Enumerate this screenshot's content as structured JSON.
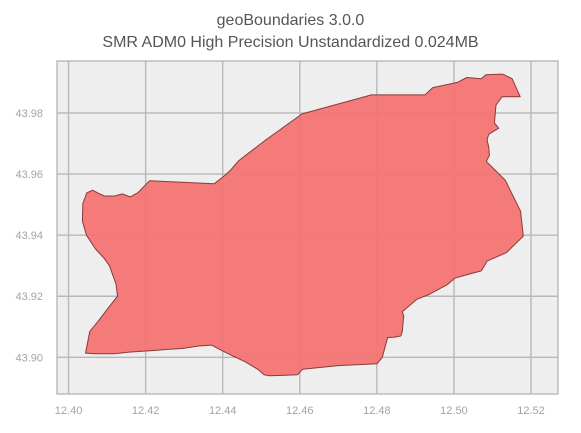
{
  "title": {
    "line1": "geoBoundaries 3.0.0",
    "line2": "SMR ADM0 High Precision Unstandardized 0.024MB"
  },
  "map": {
    "region_code": "SMR",
    "admin_level": "ADM0",
    "fill_color": "#f47373",
    "edge_color": "#8a3a3a",
    "background_color": "#eeeeee",
    "grid_color": "#b8b8b8",
    "grid": true,
    "xlim": [
      12.397,
      12.527
    ],
    "ylim": [
      43.888,
      43.997
    ],
    "x_ticks": [
      {
        "value": 12.4,
        "label": "12.40"
      },
      {
        "value": 12.42,
        "label": "12.42"
      },
      {
        "value": 12.44,
        "label": "12.44"
      },
      {
        "value": 12.46,
        "label": "12.46"
      },
      {
        "value": 12.48,
        "label": "12.48"
      },
      {
        "value": 12.5,
        "label": "12.50"
      },
      {
        "value": 12.52,
        "label": "12.52"
      }
    ],
    "y_ticks": [
      {
        "value": 43.9,
        "label": "43.90"
      },
      {
        "value": 43.92,
        "label": "43.92"
      },
      {
        "value": 43.94,
        "label": "43.94"
      },
      {
        "value": 43.96,
        "label": "43.96"
      },
      {
        "value": 43.98,
        "label": "43.98"
      }
    ],
    "outline": [
      [
        12.4047,
        43.9538
      ],
      [
        12.4062,
        43.9547
      ],
      [
        12.4078,
        43.9537
      ],
      [
        12.4093,
        43.9528
      ],
      [
        12.412,
        43.9528
      ],
      [
        12.4139,
        43.9535
      ],
      [
        12.416,
        43.9525
      ],
      [
        12.4181,
        43.954
      ],
      [
        12.421,
        43.9578
      ],
      [
        12.4378,
        43.9568
      ],
      [
        12.4407,
        43.9597
      ],
      [
        12.4422,
        43.9615
      ],
      [
        12.4441,
        43.9643
      ],
      [
        12.451,
        43.971
      ],
      [
        12.4606,
        43.9797
      ],
      [
        12.4786,
        43.9859
      ],
      [
        12.4925,
        43.9859
      ],
      [
        12.4945,
        43.9883
      ],
      [
        12.5009,
        43.99
      ],
      [
        12.5033,
        43.9916
      ],
      [
        12.5071,
        43.9912
      ],
      [
        12.5083,
        43.9925
      ],
      [
        12.5126,
        43.9927
      ],
      [
        12.5151,
        43.9912
      ],
      [
        12.5172,
        43.9853
      ],
      [
        12.5125,
        43.9853
      ],
      [
        12.5109,
        43.9826
      ],
      [
        12.5105,
        43.9767
      ],
      [
        12.5116,
        43.975
      ],
      [
        12.509,
        43.973
      ],
      [
        12.5086,
        43.971
      ],
      [
        12.509,
        43.969
      ],
      [
        12.5092,
        43.9662
      ],
      [
        12.5084,
        43.9641
      ],
      [
        12.5133,
        43.958
      ],
      [
        12.5173,
        43.9478
      ],
      [
        12.518,
        43.9397
      ],
      [
        12.5136,
        43.9343
      ],
      [
        12.5086,
        43.9315
      ],
      [
        12.5071,
        43.9283
      ],
      [
        12.5044,
        43.9274
      ],
      [
        12.5002,
        43.9259
      ],
      [
        12.4983,
        43.9238
      ],
      [
        12.4937,
        43.9207
      ],
      [
        12.4904,
        43.919
      ],
      [
        12.4866,
        43.9149
      ],
      [
        12.487,
        43.9135
      ],
      [
        12.4868,
        43.9115
      ],
      [
        12.4866,
        43.9085
      ],
      [
        12.4862,
        43.907
      ],
      [
        12.4844,
        43.9066
      ],
      [
        12.4828,
        43.9065
      ],
      [
        12.4814,
        43.9
      ],
      [
        12.48,
        43.8979
      ],
      [
        12.47,
        43.8973
      ],
      [
        12.4607,
        43.8961
      ],
      [
        12.4594,
        43.8943
      ],
      [
        12.4556,
        43.8941
      ],
      [
        12.4522,
        43.894
      ],
      [
        12.4507,
        43.8943
      ],
      [
        12.4491,
        43.8961
      ],
      [
        12.4459,
        43.8985
      ],
      [
        12.4422,
        43.9007
      ],
      [
        12.4398,
        43.9022
      ],
      [
        12.4371,
        43.904
      ],
      [
        12.4338,
        43.9037
      ],
      [
        12.4295,
        43.9029
      ],
      [
        12.4257,
        43.9026
      ],
      [
        12.4216,
        43.9022
      ],
      [
        12.4157,
        43.9017
      ],
      [
        12.4119,
        43.9012
      ],
      [
        12.4071,
        43.9012
      ],
      [
        12.4044,
        43.9014
      ],
      [
        12.4055,
        43.9085
      ],
      [
        12.4078,
        43.912
      ],
      [
        12.4105,
        43.9165
      ],
      [
        12.4127,
        43.92
      ],
      [
        12.4123,
        43.924
      ],
      [
        12.4106,
        43.93
      ],
      [
        12.4092,
        43.9325
      ],
      [
        12.4069,
        43.9356
      ],
      [
        12.4046,
        43.9401
      ],
      [
        12.4036,
        43.9446
      ],
      [
        12.4037,
        43.9503
      ]
    ]
  }
}
